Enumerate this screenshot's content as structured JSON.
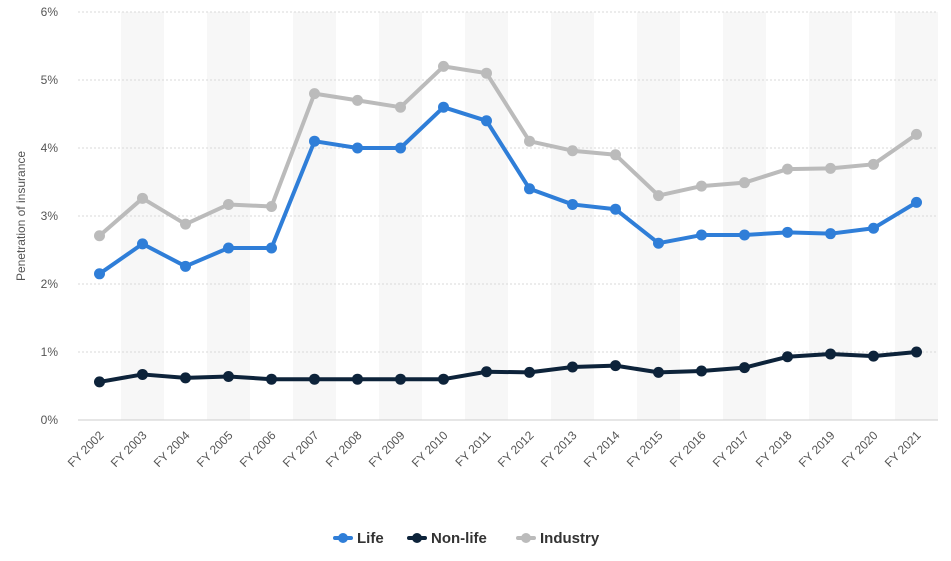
{
  "chart_data": {
    "type": "line",
    "title": "",
    "xlabel": "",
    "ylabel": "Penetration of insurance",
    "ylim": [
      0,
      6
    ],
    "yticks": [
      "0%",
      "1%",
      "2%",
      "3%",
      "4%",
      "5%",
      "6%"
    ],
    "grid": true,
    "legend_position": "bottom-center",
    "categories": [
      "FY 2002",
      "FY 2003",
      "FY 2004",
      "FY 2005",
      "FY 2006",
      "FY 2007",
      "FY 2008",
      "FY 2009",
      "FY 2010",
      "FY 2011",
      "FY 2012",
      "FY 2013",
      "FY 2014",
      "FY 2015",
      "FY 2016",
      "FY 2017",
      "FY 2018",
      "FY 2019",
      "FY 2020",
      "FY 2021"
    ],
    "series": [
      {
        "name": "Life",
        "color": "#2f7ed8",
        "values": [
          2.15,
          2.59,
          2.26,
          2.53,
          2.53,
          4.1,
          4.0,
          4.0,
          4.6,
          4.4,
          3.4,
          3.17,
          3.1,
          2.6,
          2.72,
          2.72,
          2.76,
          2.74,
          2.82,
          3.2
        ]
      },
      {
        "name": "Non-life",
        "color": "#0d233a",
        "values": [
          0.56,
          0.67,
          0.62,
          0.64,
          0.6,
          0.6,
          0.6,
          0.6,
          0.6,
          0.71,
          0.7,
          0.78,
          0.8,
          0.7,
          0.72,
          0.77,
          0.93,
          0.97,
          0.94,
          1.0
        ]
      },
      {
        "name": "Industry",
        "color": "#bbbbbb",
        "values": [
          2.71,
          3.26,
          2.88,
          3.17,
          3.14,
          4.8,
          4.7,
          4.6,
          5.2,
          5.1,
          4.1,
          3.96,
          3.9,
          3.3,
          3.44,
          3.49,
          3.69,
          3.7,
          3.76,
          4.2
        ]
      }
    ]
  }
}
